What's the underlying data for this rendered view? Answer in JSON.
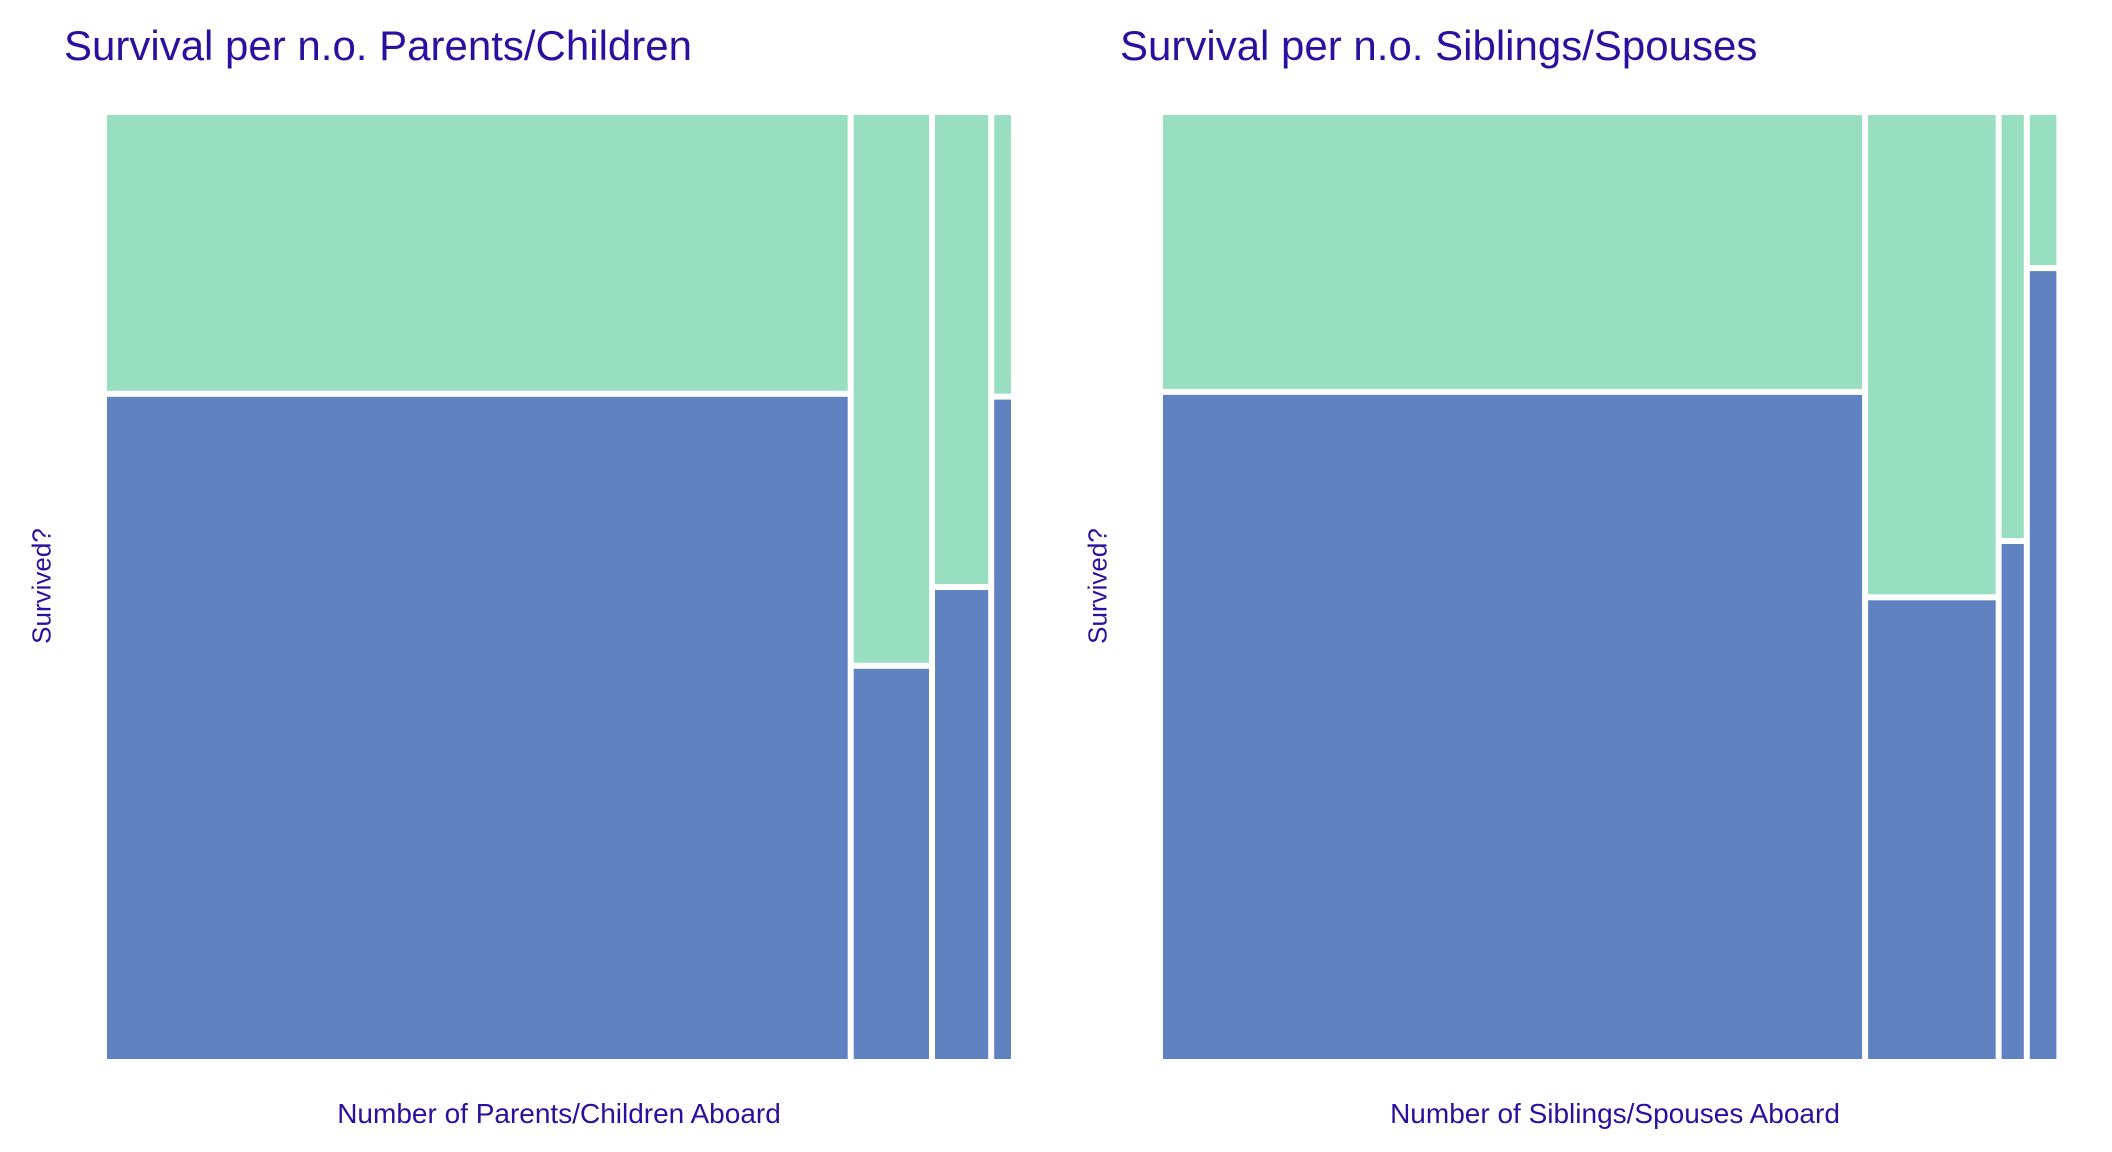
{
  "colors": {
    "survived": "#97dfc0",
    "died": "#6082c1",
    "text": "#2b0f9e",
    "gap": "#ffffff"
  },
  "chart_data": [
    {
      "type": "mosaic",
      "title": "Survival per n.o. Parents/Children",
      "xlabel": "Number of Parents/Children Aboard",
      "ylabel": "Survived?",
      "segments": [
        {
          "width_share": 0.836,
          "survived_share": 0.294
        },
        {
          "width_share": 0.085,
          "survived_share": 0.584
        },
        {
          "width_share": 0.06,
          "survived_share": 0.5
        },
        {
          "width_share": 0.019,
          "survived_share": 0.297
        }
      ]
    },
    {
      "type": "mosaic",
      "title": "Survival per n.o. Siblings/Spouses",
      "xlabel": "Number of Siblings/Spouses Aboard",
      "ylabel": "Survived?",
      "segments": [
        {
          "width_share": 0.789,
          "survived_share": 0.292
        },
        {
          "width_share": 0.144,
          "survived_share": 0.511
        },
        {
          "width_share": 0.025,
          "survived_share": 0.451
        },
        {
          "width_share": 0.03,
          "survived_share": 0.16
        }
      ]
    }
  ]
}
